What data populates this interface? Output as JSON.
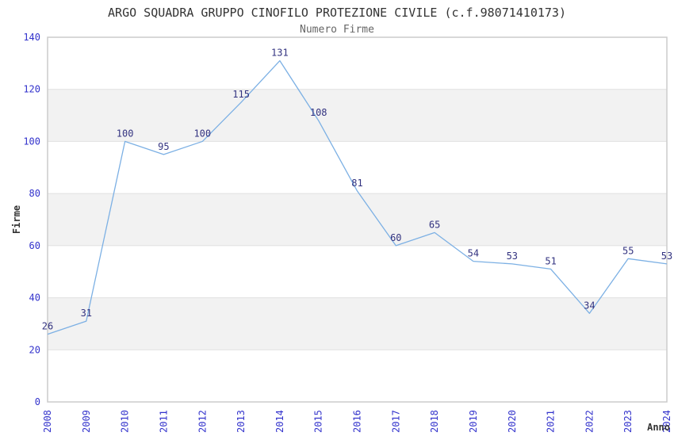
{
  "chart_data": {
    "type": "line",
    "title": "ARGO SQUADRA GRUPPO CINOFILO PROTEZIONE CIVILE (c.f.98071410173)",
    "subtitle": "Numero Firme",
    "xlabel": "Anno",
    "ylabel": "Firme",
    "categories": [
      "2008",
      "2009",
      "2010",
      "2011",
      "2012",
      "2013",
      "2014",
      "2015",
      "2016",
      "2017",
      "2018",
      "2019",
      "2020",
      "2021",
      "2022",
      "2023",
      "2024"
    ],
    "values": [
      26,
      31,
      100,
      95,
      100,
      115,
      131,
      108,
      81,
      60,
      65,
      54,
      53,
      51,
      34,
      55,
      53
    ],
    "ylim": [
      0,
      140
    ],
    "ytick_step": 20,
    "grid": true,
    "legend_position": "none",
    "data_labels_visible": true,
    "colors": {
      "line": "#7cb0e4",
      "data_label": "#333380",
      "tick_label": "#3333cc",
      "band": "#f2f2f2",
      "gridline": "#e0e0e0",
      "plot_border": "#cccccc",
      "title": "#333333",
      "subtitle": "#666666",
      "axis_label": "#333333",
      "background": "#ffffff"
    }
  }
}
